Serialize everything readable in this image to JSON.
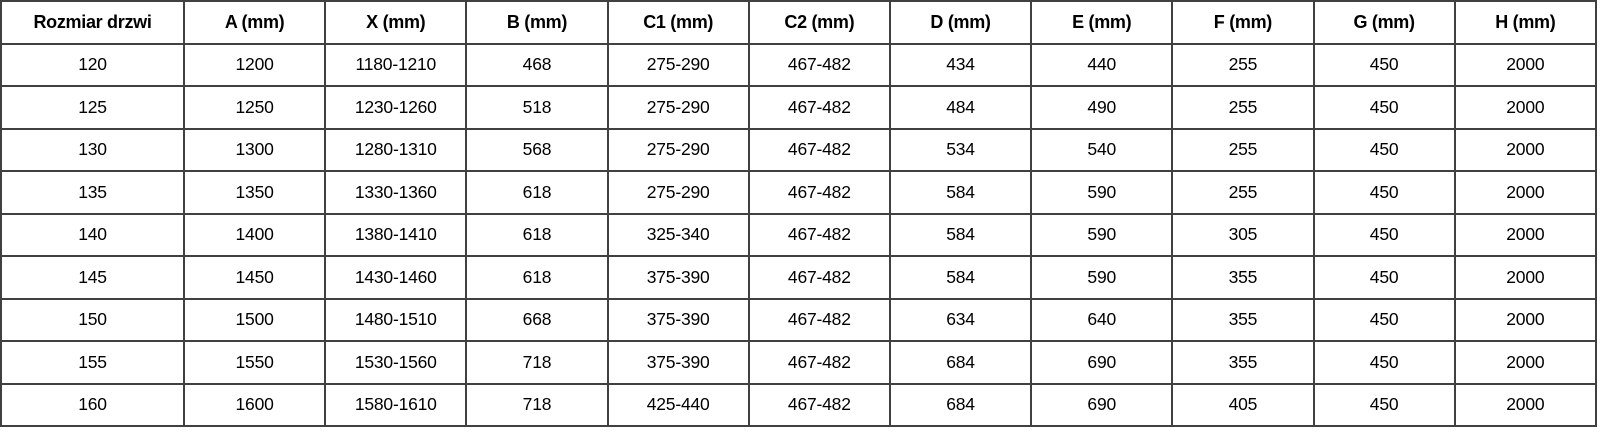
{
  "table": {
    "columns": [
      "Rozmiar drzwi",
      "A (mm)",
      "X (mm)",
      "B (mm)",
      "C1 (mm)",
      "C2 (mm)",
      "D (mm)",
      "E (mm)",
      "F (mm)",
      "G (mm)",
      "H (mm)"
    ],
    "rows": [
      [
        "120",
        "1200",
        "1180-1210",
        "468",
        "275-290",
        "467-482",
        "434",
        "440",
        "255",
        "450",
        "2000"
      ],
      [
        "125",
        "1250",
        "1230-1260",
        "518",
        "275-290",
        "467-482",
        "484",
        "490",
        "255",
        "450",
        "2000"
      ],
      [
        "130",
        "1300",
        "1280-1310",
        "568",
        "275-290",
        "467-482",
        "534",
        "540",
        "255",
        "450",
        "2000"
      ],
      [
        "135",
        "1350",
        "1330-1360",
        "618",
        "275-290",
        "467-482",
        "584",
        "590",
        "255",
        "450",
        "2000"
      ],
      [
        "140",
        "1400",
        "1380-1410",
        "618",
        "325-340",
        "467-482",
        "584",
        "590",
        "305",
        "450",
        "2000"
      ],
      [
        "145",
        "1450",
        "1430-1460",
        "618",
        "375-390",
        "467-482",
        "584",
        "590",
        "355",
        "450",
        "2000"
      ],
      [
        "150",
        "1500",
        "1480-1510",
        "668",
        "375-390",
        "467-482",
        "634",
        "640",
        "355",
        "450",
        "2000"
      ],
      [
        "155",
        "1550",
        "1530-1560",
        "718",
        "375-390",
        "467-482",
        "684",
        "690",
        "355",
        "450",
        "2000"
      ],
      [
        "160",
        "1600",
        "1580-1610",
        "718",
        "425-440",
        "467-482",
        "684",
        "690",
        "405",
        "450",
        "2000"
      ]
    ]
  },
  "colors": {
    "border": "#404040",
    "text": "#000000",
    "background": "#ffffff"
  }
}
